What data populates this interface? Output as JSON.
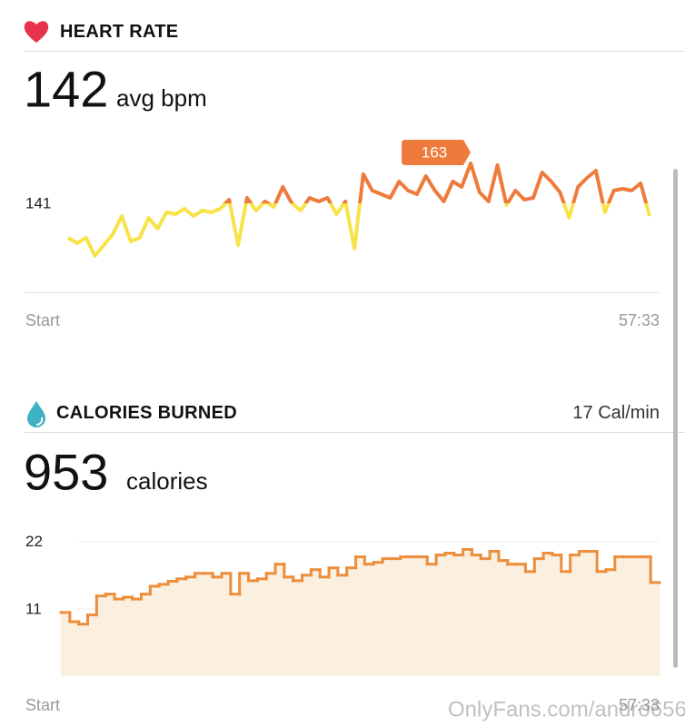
{
  "sections": [
    {
      "title": "HEART RATE",
      "value": 142,
      "unit": "avg bpm"
    },
    {
      "title": "CALORIES BURNED",
      "rate": "17 Cal/min",
      "value": 953,
      "unit": "calories"
    }
  ],
  "chart_data": [
    {
      "type": "line",
      "x_labels": [
        "Start",
        "57:33"
      ],
      "ylim": [
        92,
        183
      ],
      "yticks": [
        141
      ],
      "grid": false,
      "colors": {
        "above": "#ee7b3b",
        "below": "#f8e24a"
      },
      "values": [
        122,
        119,
        122,
        112,
        118,
        124,
        134,
        120,
        122,
        133,
        127,
        136,
        135,
        138,
        134,
        137,
        136,
        138,
        143,
        118,
        144,
        137,
        142,
        139,
        150,
        141,
        137,
        144,
        142,
        144,
        135,
        142,
        116,
        157,
        148,
        146,
        144,
        153,
        148,
        146,
        156,
        148,
        142,
        153,
        150,
        163,
        147,
        142,
        162,
        140,
        148,
        143,
        144,
        158,
        153,
        147,
        133,
        150,
        155,
        159,
        136,
        148,
        149,
        148,
        152,
        134
      ]
    },
    {
      "type": "step-area",
      "x_labels": [
        "Start",
        "57:33"
      ],
      "ylim": [
        0,
        23
      ],
      "yticks": [
        11,
        22
      ],
      "grid": true,
      "color": "#ec8e3c",
      "fill": "#fbefdf",
      "values": [
        10.4,
        8.9,
        8.5,
        10.0,
        13.1,
        13.4,
        12.6,
        12.9,
        12.6,
        13.4,
        14.7,
        15.0,
        15.5,
        15.9,
        16.2,
        16.8,
        16.8,
        16.2,
        16.8,
        13.4,
        16.8,
        15.6,
        15.9,
        16.8,
        18.3,
        16.2,
        15.6,
        16.5,
        17.4,
        16.2,
        17.7,
        16.5,
        17.7,
        19.5,
        18.3,
        18.6,
        19.2,
        19.2,
        19.5,
        19.5,
        19.5,
        18.3,
        19.8,
        20.1,
        19.8,
        20.7,
        19.8,
        19.2,
        20.4,
        18.9,
        18.3,
        18.3,
        17.1,
        19.2,
        20.1,
        19.8,
        17.1,
        19.8,
        20.4,
        20.4,
        17.1,
        17.4,
        19.5,
        19.5,
        19.5,
        19.5,
        15.3
      ]
    }
  ],
  "watermark": "OnlyFans.com/andro656"
}
